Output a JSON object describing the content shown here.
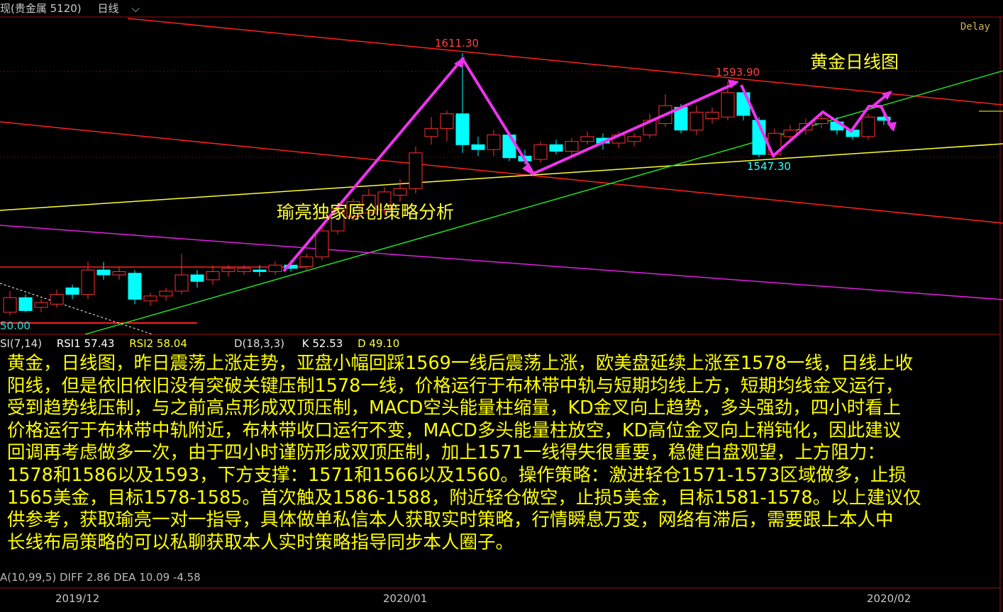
{
  "header": {
    "symbol": "现(贵金属 5120)",
    "period": "日线",
    "period_icon": "chevron-down-icon"
  },
  "delay_label": "Delay",
  "colors": {
    "up": "#ff3030",
    "down": "#00ffff",
    "resistance": "#ff2020",
    "support_yellow": "#ffff33",
    "trend_green": "#22dd22",
    "channel_magenta": "#e020e0",
    "arrow": "#ee33ee",
    "text": "#ffff00"
  },
  "chart_data": {
    "type": "candlestick",
    "title": "黄金日线图",
    "annotation": "瑜亮独家原创策略分析",
    "price_labels": [
      {
        "text": "1611.30",
        "value": 1611.3
      },
      {
        "text": "1593.90",
        "value": 1593.9
      },
      {
        "text": "1547.30",
        "value": 1547.3
      }
    ],
    "left_axis_label": "50.00",
    "x_ticks": [
      "2019/12",
      "2020/01",
      "2020/02"
    ],
    "candles_ohlc": [
      [
        1452,
        1461,
        1465,
        1450
      ],
      [
        1461,
        1453,
        1463,
        1452
      ],
      [
        1455,
        1458,
        1460,
        1452
      ],
      [
        1457,
        1463,
        1466,
        1455
      ],
      [
        1467,
        1463,
        1469,
        1460
      ],
      [
        1463,
        1478,
        1483,
        1460
      ],
      [
        1478,
        1475,
        1483,
        1472
      ],
      [
        1475,
        1477,
        1480,
        1472
      ],
      [
        1476,
        1460,
        1478,
        1457
      ],
      [
        1459,
        1462,
        1464,
        1456
      ],
      [
        1462,
        1465,
        1467,
        1459
      ],
      [
        1465,
        1475,
        1488,
        1463
      ],
      [
        1475,
        1471,
        1478,
        1467
      ],
      [
        1472,
        1477,
        1481,
        1469
      ],
      [
        1477,
        1479,
        1481,
        1474
      ],
      [
        1477,
        1479,
        1481,
        1475
      ],
      [
        1478,
        1477,
        1481,
        1474
      ],
      [
        1477,
        1481,
        1483,
        1475
      ],
      [
        1481,
        1479,
        1484,
        1477
      ],
      [
        1480,
        1486,
        1488,
        1478
      ],
      [
        1486,
        1502,
        1504,
        1484
      ],
      [
        1502,
        1515,
        1517,
        1500
      ],
      [
        1511,
        1520,
        1522,
        1508
      ],
      [
        1513,
        1524,
        1528,
        1510
      ],
      [
        1515,
        1526,
        1529,
        1512
      ],
      [
        1524,
        1528,
        1534,
        1520
      ],
      [
        1528,
        1550,
        1554,
        1525
      ],
      [
        1560,
        1565,
        1572,
        1555
      ],
      [
        1565,
        1574,
        1576,
        1557
      ],
      [
        1574,
        1555,
        1611.3,
        1550
      ],
      [
        1555,
        1552,
        1560,
        1548
      ],
      [
        1552,
        1561,
        1564,
        1548
      ],
      [
        1561,
        1547,
        1563,
        1545
      ],
      [
        1548,
        1545,
        1552,
        1543
      ],
      [
        1546,
        1555,
        1557,
        1544
      ],
      [
        1555,
        1551,
        1558,
        1549
      ],
      [
        1551,
        1557,
        1559,
        1548
      ],
      [
        1557,
        1560,
        1563,
        1555
      ],
      [
        1559,
        1556,
        1562,
        1552
      ],
      [
        1556,
        1561,
        1563,
        1553
      ],
      [
        1557,
        1560,
        1562,
        1554
      ],
      [
        1561,
        1570,
        1574,
        1559
      ],
      [
        1568,
        1579,
        1586,
        1566
      ],
      [
        1578,
        1564,
        1580,
        1562
      ],
      [
        1564,
        1575,
        1579,
        1561
      ],
      [
        1571,
        1575,
        1578,
        1568
      ],
      [
        1572,
        1587,
        1593.9,
        1570
      ],
      [
        1587,
        1573,
        1591,
        1570
      ],
      [
        1570,
        1549,
        1572,
        1547.3
      ],
      [
        1549,
        1562,
        1565,
        1547
      ],
      [
        1560,
        1564,
        1567,
        1557
      ],
      [
        1564,
        1568,
        1571,
        1561
      ],
      [
        1568,
        1571,
        1574,
        1565
      ],
      [
        1569,
        1564,
        1572,
        1561
      ],
      [
        1564,
        1560,
        1566,
        1558
      ],
      [
        1560,
        1572,
        1574,
        1558
      ],
      [
        1572,
        1570,
        1576,
        1567
      ]
    ]
  },
  "indicators": {
    "rsi": {
      "name": "SI(7,14)",
      "rsi1": "RSI1 57.43",
      "rsi2": "RSI2 58.04"
    },
    "kd": {
      "name": "D(18,3,3)",
      "k": "K 52.53",
      "d": "D 49.10"
    },
    "macd_partial": "A(10,99,5)  DIFF 2.86   DEA 10.09   -4.58"
  },
  "analysis_lines": [
    "黄金，日线图，昨日震荡上涨走势，亚盘小幅回踩1569一线后震荡上涨，欧美盘延续上涨至1578一线，日线上收",
    "阳线，但是依旧依旧没有突破关键压制1578一线，价格运行于布林带中轨与短期均线上方，短期均线金叉运行，",
    "受到趋势线压制，与之前高点形成双顶压制，MACD空头能量柱缩量，KD金叉向上趋势，多头强劲，四小时看上",
    "价格运行于布林带中轨附近，布林带收口运行不变，MACD多头能量柱放空，KD高位金叉向上稍钝化，因此建议",
    "回调再考虑做多一次，由于四小时谨防形成双顶压制，加上1571一线得失很重要，稳健白盘观望，上方阻力：",
    "1578和1586以及1593，下方支撑：1571和1566以及1560。操作策略：激进轻仓1571-1573区域做多，止损",
    "1565美金，目标1578-1585。首次触及1586-1588，附近轻仓做空，止损5美金，目标1581-1578。以上建议仅",
    "供参考，获取瑜亮一对一指导，具体做单私信本人获取实时策略，行情瞬息万变，网络有滞后，需要跟上本人中",
    "长线布局策略的可以私聊获取本人实时策略指导同步本人圈子。"
  ]
}
